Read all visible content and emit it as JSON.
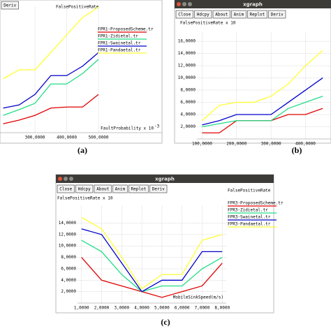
{
  "panels": [
    {
      "caption": "(a)",
      "buttons": [
        "Deriv"
      ]
    },
    {
      "caption": "(b)",
      "window_title": "xgraph",
      "buttons": [
        "Close",
        "Hdcpy",
        "About",
        "Anim",
        "Replot",
        "Deriv"
      ]
    },
    {
      "caption": "(c)",
      "window_title": "xgraph",
      "buttons": [
        "Close",
        "Hdcpy",
        "About",
        "Anim",
        "Replot",
        "Deriv"
      ]
    }
  ],
  "chart_data": [
    {
      "type": "line",
      "title": "FalsePositiveRate",
      "xlabel": "FaultProbability x 10",
      "xlabel_exponent": "-3",
      "x": [
        200,
        250,
        300,
        350,
        400,
        450,
        500
      ],
      "xlim": [
        190,
        700
      ],
      "ylim": [
        0,
        24
      ],
      "xticks": [
        {
          "value": 300,
          "label": "300,0000"
        },
        {
          "value": 400,
          "label": "400,0000"
        },
        {
          "value": 500,
          "label": "500,0000"
        }
      ],
      "grid": true,
      "series": [
        {
          "name": "FPR1-ProposedScheme.tr",
          "color": "#e00000",
          "values": [
            1.7,
            2.4,
            3.3,
            4.7,
            4.9,
            4.9,
            7.3
          ]
        },
        {
          "name": "FPR1-Zidietal.tr",
          "color": "#22dd88",
          "values": [
            3.3,
            4.4,
            5.6,
            9.3,
            9.3,
            11.3,
            14
          ]
        },
        {
          "name": "FPR1-Swainetal.tr",
          "color": "#0000cc",
          "values": [
            4.7,
            5.3,
            7.3,
            10.9,
            10.9,
            12.7,
            15.3
          ]
        },
        {
          "name": "FPR1-Pandaetal.tr",
          "color": "#ffff33",
          "values": [
            10.3,
            12,
            12,
            15.3,
            18.7,
            22,
            24
          ]
        }
      ]
    },
    {
      "type": "line",
      "ylabel": "FalsePositiveRate x 10",
      "x": [
        100,
        150,
        200,
        250,
        300,
        350,
        400,
        450
      ],
      "xlim": [
        85,
        474
      ],
      "ylim": [
        0,
        17.5
      ],
      "xticks": [
        {
          "value": 100,
          "label": "100,0000"
        },
        {
          "value": 200,
          "label": "200,0000"
        },
        {
          "value": 300,
          "label": "300,0000"
        },
        {
          "value": 400,
          "label": "400,0000"
        }
      ],
      "yticks": [
        {
          "value": 2,
          "label": "2,0000"
        },
        {
          "value": 4,
          "label": "4,0000"
        },
        {
          "value": 6,
          "label": "6,0000"
        },
        {
          "value": 8,
          "label": "8,0000"
        },
        {
          "value": 10,
          "label": "10,0000"
        },
        {
          "value": 12,
          "label": "12,0000"
        },
        {
          "value": 14,
          "label": "14,0000"
        },
        {
          "value": 16,
          "label": "16,0000"
        }
      ],
      "grid": true,
      "series": [
        {
          "color": "#e00000",
          "values": [
            1,
            1,
            3,
            3,
            3,
            4,
            4,
            5
          ]
        },
        {
          "color": "#22dd88",
          "values": [
            2,
            2.5,
            3,
            3,
            3,
            5,
            6,
            7
          ]
        },
        {
          "color": "#0000cc",
          "values": [
            2.3,
            3,
            4,
            4,
            4,
            6,
            8,
            10
          ]
        },
        {
          "color": "#ffff33",
          "values": [
            3,
            5.5,
            6,
            6,
            7,
            9,
            12,
            14.5
          ]
        }
      ]
    },
    {
      "type": "line",
      "title": "FalsePositiveRate",
      "ylabel": "FalsePositiveRate x 10",
      "xlabel": "MobileSinkSpeed(m/s)",
      "x": [
        1,
        2,
        3,
        4,
        5,
        6,
        7,
        8
      ],
      "xlim": [
        0.8,
        8.2
      ],
      "ylim": [
        0,
        17
      ],
      "xticks": [
        {
          "value": 1,
          "label": "1,0000"
        },
        {
          "value": 2,
          "label": "2,0000"
        },
        {
          "value": 3,
          "label": "3,0000"
        },
        {
          "value": 4,
          "label": "4,0000"
        },
        {
          "value": 5,
          "label": "5,0000"
        },
        {
          "value": 6,
          "label": "6,0000"
        },
        {
          "value": 7,
          "label": "7,0000"
        },
        {
          "value": 8,
          "label": "8,0000"
        }
      ],
      "yticks": [
        {
          "value": 2,
          "label": "2,0000"
        },
        {
          "value": 4,
          "label": "4,0000"
        },
        {
          "value": 6,
          "label": "6,0000"
        },
        {
          "value": 8,
          "label": "8,0000"
        },
        {
          "value": 10,
          "label": "10,0000"
        },
        {
          "value": 12,
          "label": "12,0000"
        },
        {
          "value": 14,
          "label": "14,0000"
        }
      ],
      "grid": true,
      "series": [
        {
          "name": "FPR3-ProposedScheme.tr",
          "color": "#e00000",
          "values": [
            8,
            4,
            3,
            2,
            1,
            2,
            3,
            7
          ]
        },
        {
          "name": "FPR3-Zidietal.tr",
          "color": "#22dd88",
          "values": [
            11,
            9,
            5,
            2,
            3,
            3,
            6,
            8
          ]
        },
        {
          "name": "FPR3-Swainetal.tr",
          "color": "#0000cc",
          "values": [
            13,
            12,
            7,
            2,
            4,
            4,
            9,
            9
          ]
        },
        {
          "name": "FPR3-Pandaetal.tr",
          "color": "#ffff33",
          "values": [
            15,
            13,
            8,
            2.5,
            5,
            5,
            11,
            12
          ]
        }
      ]
    }
  ]
}
